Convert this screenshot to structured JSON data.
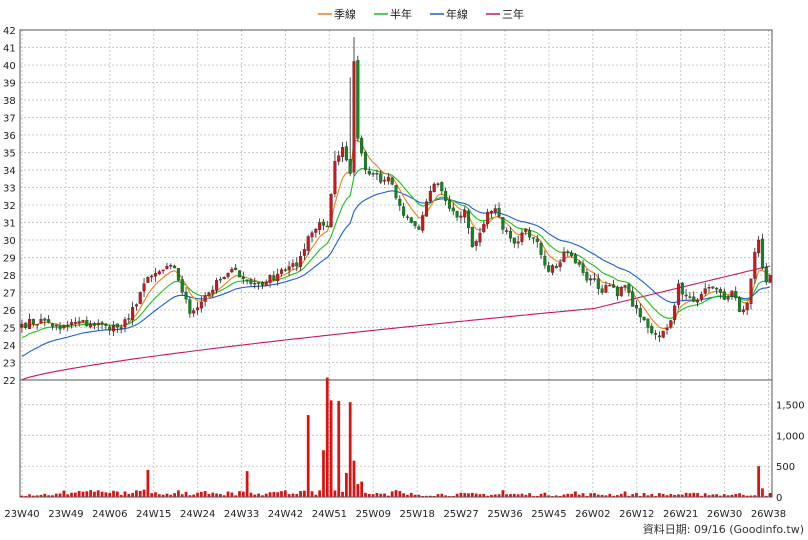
{
  "legend": [
    {
      "label": "季線",
      "color": "#f07f1a"
    },
    {
      "label": "半年",
      "color": "#19c21b"
    },
    {
      "label": "年線",
      "color": "#1b5fd6"
    },
    {
      "label": "三年",
      "color": "#cc1466"
    }
  ],
  "footer": "資料日期: 09/16  (Goodinfo.tw)",
  "colors": {
    "up": "#d4141b",
    "down": "#0c8a1d",
    "volume": "#e01010",
    "grid": "#c8c8c8"
  },
  "chart_data": {
    "type": "candlestick",
    "price_ylim": [
      22,
      42
    ],
    "price_ticks": [
      22,
      23,
      24,
      25,
      26,
      27,
      28,
      29,
      30,
      31,
      32,
      33,
      34,
      35,
      36,
      37,
      38,
      39,
      40,
      41,
      42
    ],
    "volume_ylim": [
      0,
      1900
    ],
    "volume_ticks": [
      {
        "v": 0,
        "label": "0"
      },
      {
        "v": 500,
        "label": "500"
      },
      {
        "v": 1000,
        "label": "1,000"
      },
      {
        "v": 1500,
        "label": "1,500"
      }
    ],
    "x_labels": [
      "23W40",
      "23W49",
      "24W06",
      "24W15",
      "24W24",
      "24W33",
      "24W42",
      "24W51",
      "25W09",
      "25W18",
      "25W27",
      "25W36",
      "25W45",
      "26W02",
      "26W12",
      "26W21",
      "26W30",
      "26W38"
    ],
    "grid": true,
    "close_anchors": [
      [
        0,
        25.2
      ],
      [
        6,
        25.4
      ],
      [
        10,
        24.9
      ],
      [
        14,
        25.3
      ],
      [
        18,
        25.2
      ],
      [
        22,
        25.1
      ],
      [
        26,
        25.0
      ],
      [
        28,
        25.5
      ],
      [
        32,
        27.5
      ],
      [
        36,
        28.2
      ],
      [
        40,
        28.4
      ],
      [
        44,
        25.8
      ],
      [
        48,
        26.8
      ],
      [
        52,
        27.7
      ],
      [
        56,
        28.3
      ],
      [
        60,
        27.5
      ],
      [
        64,
        27.6
      ],
      [
        68,
        28.3
      ],
      [
        72,
        28.5
      ],
      [
        75,
        30.2
      ],
      [
        78,
        31.0
      ],
      [
        80,
        30.8
      ],
      [
        82,
        34.5
      ],
      [
        84,
        35.3
      ],
      [
        86,
        33.8
      ],
      [
        87,
        40.2
      ],
      [
        88,
        35.8
      ],
      [
        90,
        34.0
      ],
      [
        92,
        33.8
      ],
      [
        94,
        33.3
      ],
      [
        96,
        33.6
      ],
      [
        98,
        32.4
      ],
      [
        100,
        31.4
      ],
      [
        102,
        31.0
      ],
      [
        104,
        30.6
      ],
      [
        106,
        32.2
      ],
      [
        108,
        33.2
      ],
      [
        110,
        32.8
      ],
      [
        112,
        31.8
      ],
      [
        114,
        31.3
      ],
      [
        116,
        31.7
      ],
      [
        118,
        29.6
      ],
      [
        120,
        30.4
      ],
      [
        122,
        31.6
      ],
      [
        124,
        31.8
      ],
      [
        126,
        30.6
      ],
      [
        128,
        30.1
      ],
      [
        130,
        29.9
      ],
      [
        132,
        30.6
      ],
      [
        135,
        29.9
      ],
      [
        138,
        28.2
      ],
      [
        140,
        28.4
      ],
      [
        142,
        29.3
      ],
      [
        144,
        29.1
      ],
      [
        146,
        28.6
      ],
      [
        148,
        27.7
      ],
      [
        150,
        27.8
      ],
      [
        152,
        27.0
      ],
      [
        154,
        27.4
      ],
      [
        156,
        26.8
      ],
      [
        158,
        27.4
      ],
      [
        160,
        26.2
      ],
      [
        162,
        25.6
      ],
      [
        164,
        25.0
      ],
      [
        166,
        24.6
      ],
      [
        168,
        24.8
      ],
      [
        170,
        25.4
      ],
      [
        172,
        27.5
      ],
      [
        174,
        26.8
      ],
      [
        176,
        26.5
      ],
      [
        178,
        26.9
      ],
      [
        180,
        27.3
      ],
      [
        182,
        27.2
      ],
      [
        184,
        26.6
      ],
      [
        186,
        27.1
      ],
      [
        188,
        25.9
      ],
      [
        190,
        26.4
      ],
      [
        192,
        29.3
      ],
      [
        193,
        30.0
      ],
      [
        194,
        28.4
      ],
      [
        195,
        27.6
      ],
      [
        196,
        28.0
      ]
    ],
    "volume_spikes": [
      [
        33,
        440
      ],
      [
        59,
        420
      ],
      [
        75,
        1330
      ],
      [
        79,
        760
      ],
      [
        80,
        1940
      ],
      [
        81,
        1570
      ],
      [
        83,
        1560
      ],
      [
        85,
        390
      ],
      [
        86,
        1540
      ],
      [
        87,
        590
      ],
      [
        88,
        210
      ],
      [
        89,
        250
      ],
      [
        126,
        110
      ],
      [
        145,
        90
      ],
      [
        158,
        90
      ],
      [
        179,
        60
      ],
      [
        193,
        500
      ],
      [
        194,
        140
      ]
    ]
  }
}
